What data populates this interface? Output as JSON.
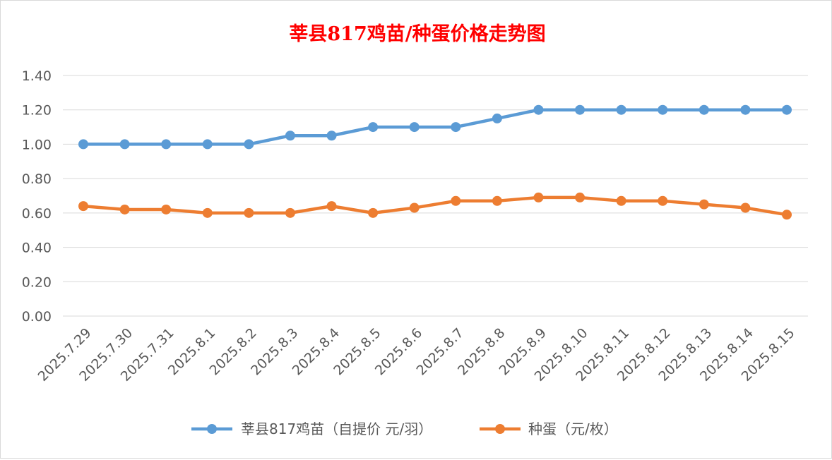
{
  "chart_data": {
    "type": "line",
    "title": "莘县817鸡苗/种蛋价格走势图",
    "categories": [
      "2025.7.29",
      "2025.7.30",
      "2025.7.31",
      "2025.8.1",
      "2025.8.2",
      "2025.8.3",
      "2025.8.4",
      "2025.8.5",
      "2025.8.6",
      "2025.8.7",
      "2025.8.8",
      "2025.8.9",
      "2025.8.10",
      "2025.8.11",
      "2025.8.12",
      "2025.8.13",
      "2025.8.14",
      "2025.8.15"
    ],
    "series": [
      {
        "name": "莘县817鸡苗（自提价 元/羽）",
        "color": "#5b9bd5",
        "values": [
          1.0,
          1.0,
          1.0,
          1.0,
          1.0,
          1.05,
          1.05,
          1.1,
          1.1,
          1.1,
          1.15,
          1.2,
          1.2,
          1.2,
          1.2,
          1.2,
          1.2,
          1.2
        ]
      },
      {
        "name": "种蛋（元/枚）",
        "color": "#ed7d31",
        "values": [
          0.64,
          0.62,
          0.62,
          0.6,
          0.6,
          0.6,
          0.64,
          0.6,
          0.63,
          0.67,
          0.67,
          0.69,
          0.69,
          0.67,
          0.67,
          0.65,
          0.63,
          0.59
        ]
      }
    ],
    "yticks": [
      "0.00",
      "0.20",
      "0.40",
      "0.60",
      "0.80",
      "1.00",
      "1.20",
      "1.40"
    ],
    "ylim": [
      0,
      1.4
    ],
    "grid": true,
    "legend": "bottom",
    "title_color": "#ff0000"
  }
}
